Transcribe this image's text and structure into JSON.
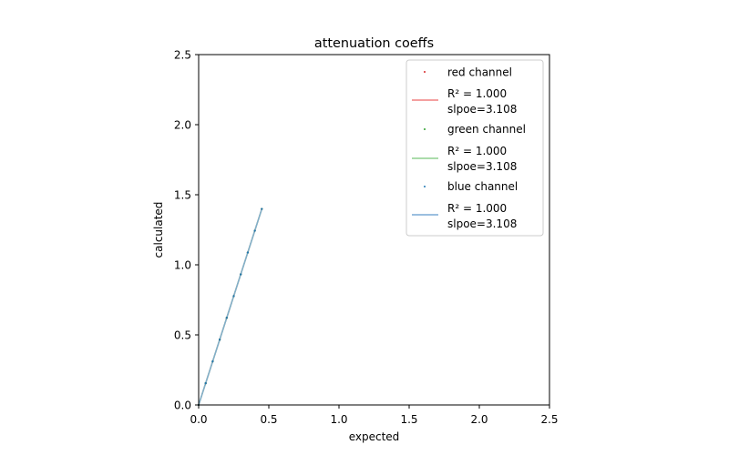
{
  "chart_data": {
    "type": "scatter",
    "title": "attenuation coeffs",
    "xlabel": "expected",
    "ylabel": "calculated",
    "xlim": [
      0,
      2.5
    ],
    "ylim": [
      0,
      2.5
    ],
    "x_ticks": [
      "0.0",
      "0.5",
      "1.0",
      "1.5",
      "2.0",
      "2.5"
    ],
    "y_ticks": [
      "0.0",
      "0.5",
      "1.0",
      "1.5",
      "2.0",
      "2.5"
    ],
    "aspect": "equal",
    "grid": false,
    "legend_position": "upper right",
    "x": [
      0.0,
      0.05,
      0.1,
      0.15,
      0.2,
      0.25,
      0.3,
      0.35,
      0.4,
      0.45
    ],
    "series": [
      {
        "name": "red channel",
        "color": "#d62728",
        "marker": "point",
        "values": [
          0.0,
          0.155,
          0.311,
          0.466,
          0.622,
          0.777,
          0.932,
          1.088,
          1.243,
          1.399
        ],
        "fit": {
          "r2_label": "R² = 1.000",
          "slope_label": "slpoe=3.108",
          "slope": 3.108,
          "color": "#f08080"
        }
      },
      {
        "name": "green channel",
        "color": "#2ca02c",
        "marker": "point",
        "values": [
          0.0,
          0.155,
          0.311,
          0.466,
          0.622,
          0.777,
          0.932,
          1.088,
          1.243,
          1.399
        ],
        "fit": {
          "r2_label": "R² = 1.000",
          "slope_label": "slpoe=3.108",
          "slope": 3.108,
          "color": "#8fd18f"
        }
      },
      {
        "name": "blue channel",
        "color": "#1f77b4",
        "marker": "point",
        "values": [
          0.0,
          0.155,
          0.311,
          0.466,
          0.622,
          0.777,
          0.932,
          1.088,
          1.243,
          1.399
        ],
        "fit": {
          "r2_label": "R² =  1.000",
          "slope_label": "slpoe=3.108",
          "slope": 3.108,
          "color": "#7aaad6"
        }
      }
    ]
  }
}
